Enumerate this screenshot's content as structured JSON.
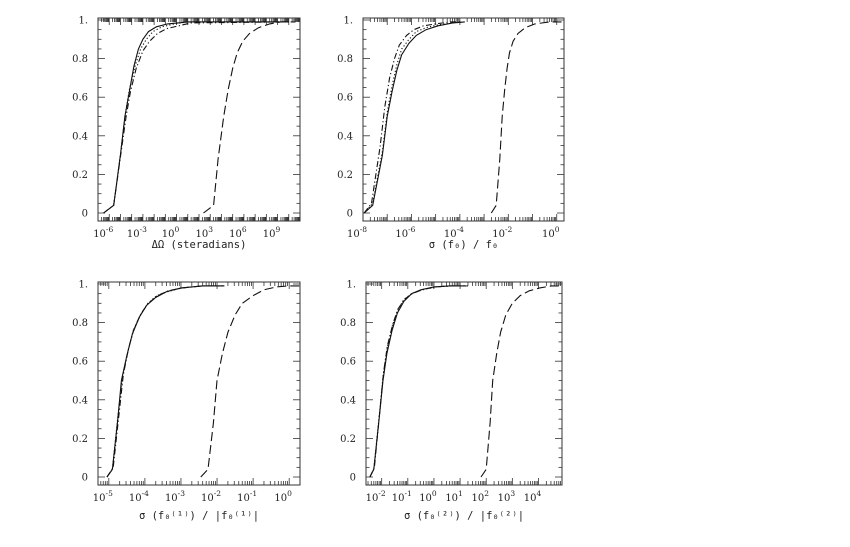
{
  "chart_data": [
    {
      "type": "line",
      "xscale": "log",
      "xlabel": "ΔΩ (steradians)",
      "xlim": [
        -7,
        11
      ],
      "ylim": [
        0,
        1
      ],
      "y_ticks": [
        "0",
        "0.2",
        "0.4",
        "0.6",
        "0.8",
        "1."
      ],
      "x_ticks": [
        {
          "base": "10",
          "exp": "-6",
          "value": -6
        },
        {
          "base": "10",
          "exp": "-3",
          "value": -3
        },
        {
          "base": "10",
          "exp": "0",
          "value": 0
        },
        {
          "base": "10",
          "exp": "3",
          "value": 3
        },
        {
          "base": "10",
          "exp": "6",
          "value": 6
        },
        {
          "base": "10",
          "exp": "9",
          "value": 9
        }
      ],
      "series": [
        {
          "style": "solid",
          "x": [
            -6.5,
            -5.6,
            -5.0,
            -4.6,
            -4.2,
            -3.8,
            -3.4,
            -3.0,
            -2.5,
            -1.8,
            -0.8,
            1,
            10
          ],
          "y": [
            0,
            0.04,
            0.3,
            0.5,
            0.63,
            0.76,
            0.85,
            0.9,
            0.94,
            0.965,
            0.98,
            0.99,
            0.99
          ]
        },
        {
          "style": "dotted",
          "x": [
            -6.5,
            -5.6,
            -5.0,
            -4.6,
            -4.2,
            -3.7,
            -3.2,
            -2.7,
            -2.1,
            -1.3,
            -0.2,
            1,
            10
          ],
          "y": [
            0,
            0.04,
            0.3,
            0.5,
            0.64,
            0.76,
            0.85,
            0.9,
            0.94,
            0.965,
            0.98,
            0.99,
            0.99
          ]
        },
        {
          "style": "dashdot",
          "x": [
            -6.5,
            -5.6,
            -5.0,
            -4.5,
            -4.1,
            -3.6,
            -3.0,
            -2.4,
            -1.7,
            -0.9,
            0.2,
            1.3,
            10
          ],
          "y": [
            0,
            0.04,
            0.29,
            0.5,
            0.63,
            0.75,
            0.84,
            0.89,
            0.93,
            0.955,
            0.97,
            0.985,
            0.99
          ]
        },
        {
          "style": "longdash",
          "x": [
            2.4,
            3.3,
            3.7,
            4.2,
            4.6,
            5.0,
            5.4,
            5.9,
            6.5,
            7.3,
            8.3,
            9.3,
            10.6
          ],
          "y": [
            0,
            0.04,
            0.28,
            0.5,
            0.64,
            0.75,
            0.83,
            0.89,
            0.93,
            0.96,
            0.98,
            0.99,
            0.99
          ]
        }
      ]
    },
    {
      "type": "line",
      "xscale": "log",
      "xlabel": "σ (f₀) / f₀",
      "xlim": [
        -8,
        0.3
      ],
      "ylim": [
        0,
        1
      ],
      "y_ticks": [
        "0",
        "0.2",
        "0.4",
        "0.6",
        "0.8",
        "1."
      ],
      "x_ticks": [
        {
          "base": "10",
          "exp": "-8",
          "value": -8
        },
        {
          "base": "10",
          "exp": "-6",
          "value": -6
        },
        {
          "base": "10",
          "exp": "-4",
          "value": -4
        },
        {
          "base": "10",
          "exp": "-2",
          "value": -2
        },
        {
          "base": "10",
          "exp": "0",
          "value": 0
        }
      ],
      "series": [
        {
          "style": "solid",
          "x": [
            -7.95,
            -7.6,
            -7.2,
            -7.0,
            -6.8,
            -6.6,
            -6.4,
            -6.1,
            -5.8,
            -5.4,
            -4.9,
            -4.3,
            -3.8
          ],
          "y": [
            0,
            0.04,
            0.3,
            0.5,
            0.63,
            0.74,
            0.82,
            0.88,
            0.92,
            0.95,
            0.97,
            0.985,
            0.99
          ]
        },
        {
          "style": "dotted",
          "x": [
            -7.95,
            -7.6,
            -7.2,
            -7.0,
            -6.8,
            -6.6,
            -6.4,
            -6.1,
            -5.8,
            -5.4,
            -4.9,
            -4.3,
            -3.8
          ],
          "y": [
            0,
            0.05,
            0.32,
            0.52,
            0.66,
            0.77,
            0.85,
            0.9,
            0.94,
            0.96,
            0.975,
            0.985,
            0.99
          ]
        },
        {
          "style": "dashdot",
          "x": [
            -7.95,
            -7.65,
            -7.3,
            -7.1,
            -6.9,
            -6.7,
            -6.5,
            -6.2,
            -5.9,
            -5.5,
            -5.0,
            -4.4,
            -3.9
          ],
          "y": [
            0,
            0.05,
            0.34,
            0.55,
            0.7,
            0.8,
            0.87,
            0.92,
            0.95,
            0.97,
            0.98,
            0.99,
            0.99
          ]
        },
        {
          "style": "longdash",
          "x": [
            -2.7,
            -2.5,
            -2.35,
            -2.25,
            -2.15,
            -2.05,
            -1.95,
            -1.8,
            -1.6,
            -1.3,
            -0.9,
            -0.3,
            0.3
          ],
          "y": [
            0,
            0.04,
            0.28,
            0.5,
            0.64,
            0.75,
            0.83,
            0.89,
            0.93,
            0.96,
            0.98,
            0.99,
            0.99
          ]
        }
      ]
    },
    {
      "type": "line",
      "xscale": "log",
      "xlabel": "σ (f₀⁽¹⁾) / |f₀⁽¹⁾|",
      "xlim": [
        -5.3,
        0.3
      ],
      "ylim": [
        0,
        1
      ],
      "y_ticks": [
        "0",
        "0.2",
        "0.4",
        "0.6",
        "0.8",
        "1."
      ],
      "x_ticks": [
        {
          "base": "10",
          "exp": "-5",
          "value": -5
        },
        {
          "base": "10",
          "exp": "-4",
          "value": -4
        },
        {
          "base": "10",
          "exp": "-3",
          "value": -3
        },
        {
          "base": "10",
          "exp": "-2",
          "value": -2
        },
        {
          "base": "10",
          "exp": "-1",
          "value": -1
        },
        {
          "base": "10",
          "exp": "0",
          "value": 0
        }
      ],
      "series": [
        {
          "style": "solid",
          "x": [
            -5.05,
            -4.9,
            -4.75,
            -4.65,
            -4.5,
            -4.35,
            -4.15,
            -3.95,
            -3.7,
            -3.4,
            -3.0,
            -2.4,
            -1.8
          ],
          "y": [
            0,
            0.04,
            0.3,
            0.5,
            0.63,
            0.74,
            0.83,
            0.89,
            0.93,
            0.96,
            0.98,
            0.99,
            0.99
          ]
        },
        {
          "style": "dotted",
          "x": [
            -5.05,
            -4.9,
            -4.75,
            -4.62,
            -4.47,
            -4.32,
            -4.12,
            -3.92,
            -3.67,
            -3.37,
            -2.97,
            -2.4,
            -1.8
          ],
          "y": [
            0,
            0.04,
            0.31,
            0.52,
            0.65,
            0.76,
            0.84,
            0.9,
            0.94,
            0.96,
            0.98,
            0.99,
            0.99
          ]
        },
        {
          "style": "dashdot",
          "x": [
            -5.05,
            -4.88,
            -4.72,
            -4.6,
            -4.45,
            -4.3,
            -4.1,
            -3.9,
            -3.65,
            -3.35,
            -2.95,
            -2.4,
            -1.8
          ],
          "y": [
            0,
            0.05,
            0.32,
            0.53,
            0.67,
            0.77,
            0.85,
            0.9,
            0.94,
            0.965,
            0.98,
            0.99,
            0.99
          ]
        },
        {
          "style": "longdash",
          "x": [
            -2.45,
            -2.25,
            -2.1,
            -2.0,
            -1.85,
            -1.7,
            -1.5,
            -1.3,
            -1.0,
            -0.7,
            -0.35,
            0,
            0.3
          ],
          "y": [
            0,
            0.04,
            0.28,
            0.5,
            0.64,
            0.75,
            0.84,
            0.9,
            0.94,
            0.97,
            0.985,
            0.99,
            0.99
          ]
        }
      ]
    },
    {
      "type": "line",
      "xscale": "log",
      "xlabel": "σ (f₀⁽²⁾) / |f₀⁽²⁾|",
      "xlim": [
        -2.6,
        4.9
      ],
      "ylim": [
        0,
        1
      ],
      "y_ticks": [
        "0",
        "0.2",
        "0.4",
        "0.6",
        "0.8",
        "1."
      ],
      "x_ticks": [
        {
          "base": "10",
          "exp": "-2",
          "value": -2
        },
        {
          "base": "10",
          "exp": "-1",
          "value": -1
        },
        {
          "base": "10",
          "exp": "0",
          "value": 0
        },
        {
          "base": "10",
          "exp": "1",
          "value": 1
        },
        {
          "base": "10",
          "exp": "2",
          "value": 2
        },
        {
          "base": "10",
          "exp": "3",
          "value": 3
        },
        {
          "base": "10",
          "exp": "4",
          "value": 4
        }
      ],
      "series": [
        {
          "style": "solid",
          "x": [
            -2.45,
            -2.3,
            -2.1,
            -1.95,
            -1.8,
            -1.6,
            -1.4,
            -1.15,
            -0.85,
            -0.5,
            0,
            0.6,
            1.2
          ],
          "y": [
            0,
            0.04,
            0.3,
            0.5,
            0.64,
            0.76,
            0.85,
            0.91,
            0.95,
            0.97,
            0.985,
            0.99,
            0.99
          ]
        },
        {
          "style": "dotted",
          "x": [
            -2.45,
            -2.3,
            -2.1,
            -1.95,
            -1.8,
            -1.6,
            -1.4,
            -1.15,
            -0.85,
            -0.45,
            0.1,
            0.7,
            1.3
          ],
          "y": [
            0,
            0.04,
            0.31,
            0.52,
            0.66,
            0.78,
            0.86,
            0.92,
            0.95,
            0.97,
            0.985,
            0.99,
            0.99
          ]
        },
        {
          "style": "dashdot",
          "x": [
            -2.45,
            -2.28,
            -2.08,
            -1.93,
            -1.78,
            -1.58,
            -1.38,
            -1.13,
            -0.83,
            -0.45,
            0.05,
            0.65,
            1.25
          ],
          "y": [
            0,
            0.05,
            0.33,
            0.54,
            0.68,
            0.79,
            0.87,
            0.92,
            0.95,
            0.97,
            0.985,
            0.99,
            0.99
          ]
        },
        {
          "style": "longdash",
          "x": [
            1.8,
            2.0,
            2.15,
            2.25,
            2.4,
            2.55,
            2.75,
            3.0,
            3.3,
            3.65,
            4.05,
            4.5,
            4.9
          ],
          "y": [
            0,
            0.04,
            0.28,
            0.5,
            0.64,
            0.75,
            0.84,
            0.9,
            0.94,
            0.965,
            0.98,
            0.99,
            0.99
          ]
        }
      ]
    }
  ]
}
